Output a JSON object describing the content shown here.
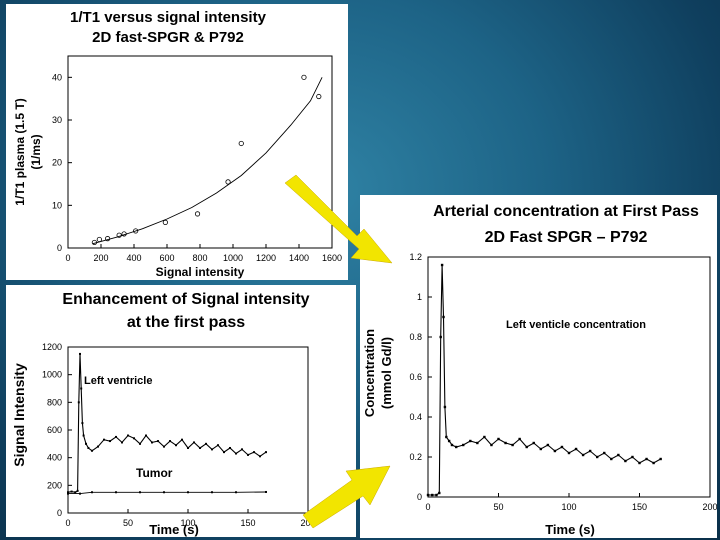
{
  "colors": {
    "background": "#1d6386",
    "panel": "#ffffff",
    "ink": "#000000",
    "arrow": "#f2e500"
  },
  "chart_data": [
    {
      "type": "scatter",
      "title": "1/T1 versus signal intensity",
      "subtitle": "2D fast-SPGR & P792",
      "xlabel": "Signal intensity",
      "ylabel": "1/T1 plasma (1.5 T)",
      "ylabel2": "(1/ms)",
      "xlim": [
        0,
        1600
      ],
      "ylim": [
        0,
        45
      ],
      "xticks": [
        "0",
        "200",
        "400",
        "600",
        "800",
        "1000",
        "1200",
        "1400",
        "1600"
      ],
      "yticks": [
        "0",
        "10",
        "20",
        "30",
        "40"
      ],
      "points": [
        {
          "x": 160,
          "y": 1.3
        },
        {
          "x": 190,
          "y": 2
        },
        {
          "x": 240,
          "y": 2.2
        },
        {
          "x": 310,
          "y": 3
        },
        {
          "x": 340,
          "y": 3.3
        },
        {
          "x": 410,
          "y": 4
        },
        {
          "x": 590,
          "y": 6
        },
        {
          "x": 785,
          "y": 8
        },
        {
          "x": 970,
          "y": 15.5
        },
        {
          "x": 1050,
          "y": 24.5
        },
        {
          "x": 1430,
          "y": 40
        },
        {
          "x": 1520,
          "y": 35.5
        }
      ],
      "fit": [
        {
          "x": 150,
          "y": 1
        },
        {
          "x": 300,
          "y": 2.6
        },
        {
          "x": 450,
          "y": 4.5
        },
        {
          "x": 600,
          "y": 6.8
        },
        {
          "x": 750,
          "y": 9.5
        },
        {
          "x": 900,
          "y": 12.9
        },
        {
          "x": 1050,
          "y": 17
        },
        {
          "x": 1200,
          "y": 22.3
        },
        {
          "x": 1350,
          "y": 28.8
        },
        {
          "x": 1470,
          "y": 34.5
        },
        {
          "x": 1540,
          "y": 40
        }
      ]
    },
    {
      "type": "line",
      "title": "Enhancement of Signal intensity",
      "subtitle": "at the first pass",
      "xlabel": "Time (s)",
      "ylabel": "Signal Intensity",
      "xlim": [
        0,
        200
      ],
      "ylim": [
        0,
        1200
      ],
      "xticks": [
        "0",
        "50",
        "100",
        "150",
        "200"
      ],
      "yticks": [
        "0",
        "200",
        "400",
        "600",
        "800",
        "1000",
        "1200"
      ],
      "series": [
        {
          "name": "Left ventricle",
          "x": [
            0,
            3,
            6,
            8,
            9,
            10,
            11,
            12,
            13,
            15,
            17,
            20,
            25,
            30,
            35,
            40,
            45,
            50,
            55,
            60,
            65,
            70,
            75,
            80,
            85,
            90,
            95,
            100,
            105,
            110,
            115,
            120,
            125,
            130,
            135,
            140,
            145,
            150,
            155,
            160,
            165
          ],
          "values": [
            150,
            155,
            150,
            160,
            800,
            1150,
            900,
            650,
            560,
            500,
            470,
            450,
            480,
            530,
            520,
            550,
            510,
            560,
            540,
            500,
            560,
            510,
            520,
            480,
            520,
            490,
            530,
            470,
            510,
            470,
            500,
            460,
            490,
            440,
            470,
            430,
            460,
            420,
            440,
            410,
            440
          ]
        },
        {
          "name": "Tumor",
          "x": [
            0,
            10,
            20,
            40,
            60,
            80,
            100,
            120,
            140,
            165
          ],
          "values": [
            140,
            140,
            150,
            150,
            150,
            150,
            150,
            150,
            150,
            152
          ]
        }
      ]
    },
    {
      "type": "line",
      "title": "Arterial concentration at First Pass",
      "subtitle": "2D Fast SPGR – P792",
      "xlabel": "Time (s)",
      "ylabel": "Concentration",
      "ylabel2": "(mmol Gd/l)",
      "xlim": [
        0,
        200
      ],
      "ylim": [
        0,
        1.2
      ],
      "xticks": [
        "0",
        "50",
        "100",
        "150",
        "200"
      ],
      "yticks": [
        "0",
        "0.2",
        "0.4",
        "0.6",
        "0.8",
        "1",
        "1.2"
      ],
      "series": [
        {
          "name": "Left venticle concentration",
          "x": [
            0,
            3,
            6,
            8,
            9,
            10,
            11,
            12,
            13,
            15,
            17,
            20,
            25,
            30,
            35,
            40,
            45,
            50,
            55,
            60,
            65,
            70,
            75,
            80,
            85,
            90,
            95,
            100,
            105,
            110,
            115,
            120,
            125,
            130,
            135,
            140,
            145,
            150,
            155,
            160,
            165
          ],
          "values": [
            0.01,
            0.01,
            0.01,
            0.02,
            0.8,
            1.16,
            0.9,
            0.45,
            0.3,
            0.28,
            0.26,
            0.25,
            0.26,
            0.28,
            0.27,
            0.3,
            0.26,
            0.29,
            0.27,
            0.26,
            0.29,
            0.25,
            0.27,
            0.24,
            0.26,
            0.23,
            0.25,
            0.22,
            0.24,
            0.21,
            0.23,
            0.2,
            0.22,
            0.19,
            0.21,
            0.18,
            0.2,
            0.17,
            0.19,
            0.17,
            0.19
          ]
        }
      ]
    }
  ]
}
